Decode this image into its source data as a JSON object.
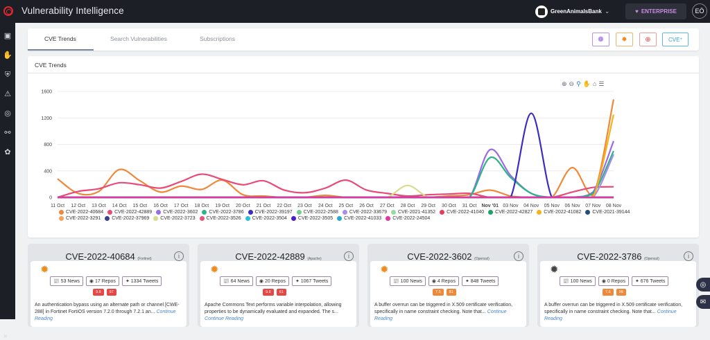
{
  "app": {
    "title": "Vulnerability Intelligence"
  },
  "header": {
    "org_name": "GreenAnimalsBank",
    "plan": "ENTERPRISE",
    "user_initials": "EÖ"
  },
  "tabs": [
    {
      "label": "CVE Trends"
    },
    {
      "label": "Search Vulnerabilities"
    },
    {
      "label": "Subscriptions"
    }
  ],
  "toolbar": {
    "cve_button": "CVE",
    "cve_sup": "+"
  },
  "chart_section": {
    "title": "CVE Trends"
  },
  "chart_data": {
    "type": "line",
    "title": "",
    "x": [
      "11 Oct",
      "12 Oct",
      "13 Oct",
      "14 Oct",
      "15 Oct",
      "16 Oct",
      "17 Oct",
      "18 Oct",
      "19 Oct",
      "20 Oct",
      "21 Oct",
      "22 Oct",
      "23 Oct",
      "24 Oct",
      "25 Oct",
      "26 Oct",
      "27 Oct",
      "28 Oct",
      "29 Oct",
      "30 Oct",
      "31 Oct",
      "Nov '01",
      "03 Nov",
      "04 Nov",
      "05 Nov",
      "06 Nov",
      "07 Nov",
      "08 Nov"
    ],
    "yticks": [
      0,
      400,
      800,
      1200,
      1600
    ],
    "ylim": [
      0,
      1600
    ],
    "series": [
      {
        "name": "CVE-2022-40684",
        "color": "#f0883a",
        "values": [
          280,
          60,
          90,
          420,
          250,
          80,
          170,
          120,
          260,
          40,
          20,
          0,
          0,
          30,
          0,
          0,
          0,
          0,
          0,
          20,
          40,
          110,
          20,
          0,
          0,
          450,
          30,
          1480
        ]
      },
      {
        "name": "CVE-2022-42889",
        "color": "#e94a76",
        "values": [
          0,
          90,
          130,
          220,
          190,
          140,
          240,
          350,
          270,
          190,
          250,
          110,
          70,
          140,
          260,
          110,
          60,
          20,
          40,
          50,
          60,
          0,
          0,
          0,
          0,
          80,
          150,
          160
        ]
      },
      {
        "name": "CVE-2022-3602",
        "color": "#9a6be6",
        "values": [
          0,
          0,
          0,
          0,
          0,
          0,
          0,
          0,
          0,
          0,
          0,
          0,
          0,
          0,
          0,
          0,
          0,
          0,
          0,
          0,
          0,
          720,
          330,
          60,
          0,
          0,
          80,
          850
        ]
      },
      {
        "name": "CVE-2022-3786",
        "color": "#2db38a",
        "values": [
          0,
          0,
          0,
          0,
          0,
          0,
          0,
          0,
          0,
          0,
          0,
          0,
          0,
          0,
          0,
          0,
          0,
          0,
          0,
          0,
          0,
          600,
          300,
          60,
          0,
          0,
          60,
          700
        ]
      },
      {
        "name": "CVE-2022-39197",
        "color": "#3b2dbf",
        "values": [
          0,
          0,
          0,
          0,
          0,
          0,
          0,
          0,
          0,
          0,
          0,
          0,
          0,
          0,
          0,
          0,
          0,
          0,
          0,
          0,
          0,
          0,
          0,
          1270,
          0,
          0,
          0,
          0
        ]
      },
      {
        "name": "CVE-2022-2588",
        "color": "#70d089",
        "values": [
          0,
          0,
          0,
          0,
          0,
          0,
          0,
          0,
          0,
          0,
          0,
          0,
          0,
          0,
          0,
          0,
          0,
          0,
          0,
          0,
          0,
          0,
          0,
          0,
          0,
          0,
          0,
          0
        ]
      },
      {
        "name": "CVE-2022-33679",
        "color": "#a98de8",
        "values": [
          0,
          0,
          0,
          0,
          0,
          0,
          0,
          0,
          0,
          0,
          0,
          0,
          0,
          0,
          0,
          0,
          0,
          0,
          0,
          0,
          0,
          0,
          0,
          0,
          0,
          0,
          0,
          650
        ]
      },
      {
        "name": "CVE-2021-41352",
        "color": "#9ad9a3",
        "values": [
          0,
          0,
          0,
          0,
          0,
          0,
          0,
          0,
          0,
          0,
          0,
          0,
          0,
          0,
          0,
          0,
          0,
          0,
          0,
          0,
          0,
          0,
          0,
          0,
          0,
          0,
          0,
          0
        ]
      },
      {
        "name": "CVE-2022-41040",
        "color": "#e23c61",
        "values": [
          0,
          0,
          0,
          0,
          0,
          0,
          0,
          0,
          0,
          0,
          0,
          0,
          0,
          0,
          0,
          0,
          0,
          0,
          0,
          0,
          0,
          0,
          0,
          0,
          0,
          0,
          0,
          0
        ]
      },
      {
        "name": "CVE-2022-42827",
        "color": "#19a36b",
        "values": [
          0,
          0,
          0,
          0,
          0,
          0,
          0,
          0,
          0,
          0,
          0,
          0,
          0,
          0,
          0,
          0,
          0,
          0,
          0,
          0,
          0,
          0,
          0,
          0,
          0,
          0,
          0,
          0
        ]
      },
      {
        "name": "CVE-2022-41082",
        "color": "#f5b21a",
        "values": [
          0,
          0,
          0,
          0,
          0,
          0,
          0,
          0,
          0,
          0,
          0,
          0,
          0,
          0,
          0,
          0,
          0,
          0,
          0,
          0,
          0,
          0,
          0,
          0,
          0,
          0,
          0,
          1250
        ]
      },
      {
        "name": "CVE-2021-39144",
        "color": "#1f4e7a",
        "values": [
          0,
          0,
          0,
          0,
          0,
          0,
          0,
          0,
          0,
          0,
          0,
          0,
          0,
          0,
          0,
          0,
          0,
          0,
          0,
          0,
          0,
          0,
          0,
          0,
          0,
          0,
          0,
          0
        ]
      },
      {
        "name": "CVE-2022-3291",
        "color": "#f4a45a",
        "values": [
          0,
          0,
          0,
          0,
          0,
          0,
          0,
          0,
          0,
          0,
          0,
          0,
          0,
          0,
          0,
          0,
          0,
          0,
          0,
          0,
          0,
          0,
          0,
          0,
          0,
          0,
          0,
          0
        ]
      },
      {
        "name": "CVE-2022-37969",
        "color": "#3f3f8f",
        "values": [
          0,
          0,
          0,
          0,
          0,
          0,
          0,
          0,
          0,
          0,
          0,
          0,
          0,
          0,
          0,
          0,
          0,
          0,
          0,
          0,
          0,
          0,
          0,
          0,
          0,
          0,
          0,
          0
        ]
      },
      {
        "name": "CVE-2022-3723",
        "color": "#d6dd8a",
        "values": [
          0,
          0,
          0,
          0,
          0,
          0,
          0,
          0,
          0,
          0,
          0,
          0,
          0,
          0,
          0,
          0,
          0,
          180,
          0,
          0,
          0,
          0,
          0,
          0,
          0,
          0,
          0,
          0
        ]
      },
      {
        "name": "CVE-2022-3526",
        "color": "#e8557b",
        "values": [
          0,
          0,
          0,
          0,
          0,
          0,
          0,
          0,
          0,
          0,
          0,
          0,
          0,
          0,
          0,
          0,
          0,
          0,
          0,
          0,
          0,
          0,
          0,
          0,
          0,
          0,
          0,
          0
        ]
      },
      {
        "name": "CVE-2022-3504",
        "color": "#2bc0d8",
        "values": [
          0,
          0,
          0,
          0,
          0,
          0,
          0,
          0,
          0,
          0,
          0,
          0,
          0,
          0,
          0,
          0,
          0,
          0,
          0,
          0,
          0,
          0,
          0,
          0,
          0,
          0,
          0,
          0
        ]
      },
      {
        "name": "CVE-2022-3505",
        "color": "#4a1fc4",
        "values": [
          0,
          0,
          0,
          0,
          0,
          0,
          0,
          0,
          0,
          0,
          0,
          0,
          0,
          0,
          0,
          0,
          0,
          0,
          0,
          0,
          0,
          0,
          0,
          0,
          0,
          0,
          0,
          0
        ]
      },
      {
        "name": "CVE-2022-41033",
        "color": "#29a9c9",
        "values": [
          0,
          0,
          0,
          0,
          0,
          0,
          0,
          0,
          0,
          0,
          0,
          0,
          0,
          0,
          0,
          0,
          0,
          0,
          0,
          0,
          0,
          0,
          0,
          0,
          0,
          0,
          0,
          0
        ]
      },
      {
        "name": "CVE-2022-24504",
        "color": "#e0379e",
        "values": [
          0,
          0,
          0,
          0,
          0,
          0,
          0,
          0,
          0,
          0,
          0,
          0,
          0,
          0,
          0,
          0,
          0,
          0,
          0,
          0,
          0,
          0,
          0,
          0,
          0,
          0,
          0,
          0
        ]
      }
    ]
  },
  "cards": [
    {
      "cve": "CVE-2022-40684",
      "vendor": "(Fortinet)",
      "news": "53 News",
      "repos": "17 Repos",
      "tweets": "1334 Tweets",
      "score1": "9.8",
      "score2": "97",
      "score_color": "#e84545",
      "spider_color": "#f08c1e",
      "desc": "An authentication bypass using an alternate path or channel [CWE-288] in Fortinet FortiOS version 7.2.0 through 7.2.1 an...",
      "more": "Continue Reading"
    },
    {
      "cve": "CVE-2022-42889",
      "vendor": "(Apache)",
      "news": "64 News",
      "repos": "20 Repos",
      "tweets": "1067 Tweets",
      "score1": "9.8",
      "score2": "61",
      "score_color": "#e84545",
      "spider_color": "#f08c1e",
      "desc": "Apache Commons Text performs variable interpolation, allowing properties to be dynamically evaluated and expanded. The s...",
      "more": "Continue Reading"
    },
    {
      "cve": "CVE-2022-3602",
      "vendor": "(Openssl)",
      "news": "100 News",
      "repos": "4 Repos",
      "tweets": "848 Tweets",
      "score1": "7.5",
      "score2": "81",
      "score_color": "#f0883a",
      "spider_color": "#f08c1e",
      "desc": "A buffer overrun can be triggered in X.509 certificate verification, specifically in name constraint checking. Note that...",
      "more": "Continue Reading"
    },
    {
      "cve": "CVE-2022-3786",
      "vendor": "(Openssl)",
      "news": "100 News",
      "repos": "0 Repos",
      "tweets": "676 Tweets",
      "score1": "7.5",
      "score2": "98",
      "score_color": "#f0883a",
      "spider_color": "#444444",
      "desc": "A buffer overrun can be triggered in X.509 certificate verification, specifically in name constraint checking. Note that...",
      "more": "Continue Reading"
    }
  ]
}
